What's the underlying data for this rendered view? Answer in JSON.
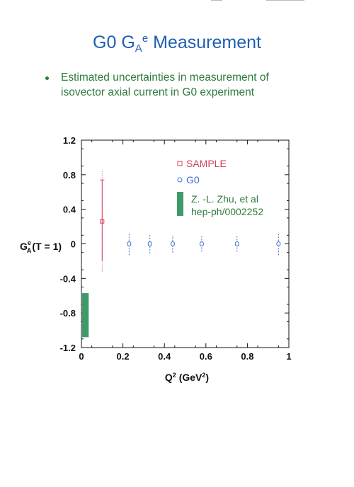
{
  "slide": {
    "title_main": "G0 G",
    "title_sub": "A",
    "title_sup": "e",
    "title_tail": " Measurement",
    "bullet_line1": "Estimated uncertainties in measurement of",
    "bullet_line2": "isovector axial current in G0 experiment"
  },
  "colors": {
    "title": "#1f5fb5",
    "bullet": "#2f7a3c",
    "sample": "#d0405a",
    "g0": "#3a6fd0",
    "theory": "#3f9a6a"
  },
  "chart_data": {
    "type": "scatter",
    "xlabel_main": "Q",
    "xlabel_sup": "2",
    "xlabel_mid": " (GeV",
    "xlabel_sup2": "2",
    "xlabel_end": ")",
    "ylabel_main": "G",
    "ylabel_sup": "e",
    "ylabel_sub": "A",
    "ylabel_tail": "(T = 1)",
    "xlim": [
      0,
      1
    ],
    "ylim": [
      -1.2,
      1.2
    ],
    "x_ticks": [
      {
        "value": 0,
        "label": "0"
      },
      {
        "value": 0.2,
        "label": "0.2"
      },
      {
        "value": 0.4,
        "label": "0.4"
      },
      {
        "value": 0.6,
        "label": "0.6"
      },
      {
        "value": 0.8,
        "label": "0.8"
      },
      {
        "value": 1,
        "label": "1"
      }
    ],
    "y_ticks": [
      {
        "value": 1.2,
        "label": "1.2"
      },
      {
        "value": 0.8,
        "label": "0.8"
      },
      {
        "value": 0.4,
        "label": "0.4"
      },
      {
        "value": 0,
        "label": "0"
      },
      {
        "value": -0.4,
        "label": "-0.4"
      },
      {
        "value": -0.8,
        "label": "-0.8"
      },
      {
        "value": -1.2,
        "label": "-1.2"
      }
    ],
    "grid": false,
    "legend_position": "top-right",
    "series": [
      {
        "name": "SAMPLE",
        "marker": "square",
        "points": [
          {
            "x": 0.1,
            "y": 0.26,
            "err_outer": [
              -0.32,
              0.86
            ],
            "err_inner": [
              -0.2,
              0.74
            ]
          }
        ]
      },
      {
        "name": "G0",
        "marker": "circle",
        "points": [
          {
            "x": 0.23,
            "y": 0,
            "err": 0.13
          },
          {
            "x": 0.33,
            "y": 0,
            "err": 0.11
          },
          {
            "x": 0.44,
            "y": 0,
            "err": 0.1
          },
          {
            "x": 0.58,
            "y": 0,
            "err": 0.09
          },
          {
            "x": 0.75,
            "y": 0,
            "err": 0.09
          },
          {
            "x": 0.95,
            "y": 0,
            "err": 0.13
          }
        ]
      }
    ],
    "theory_band": {
      "name_line1": "Z. -L. Zhu, et al",
      "name_line2": "hep-ph/0002252",
      "x_range": [
        0,
        0.035
      ],
      "y_range": [
        -1.08,
        -0.57
      ]
    }
  }
}
